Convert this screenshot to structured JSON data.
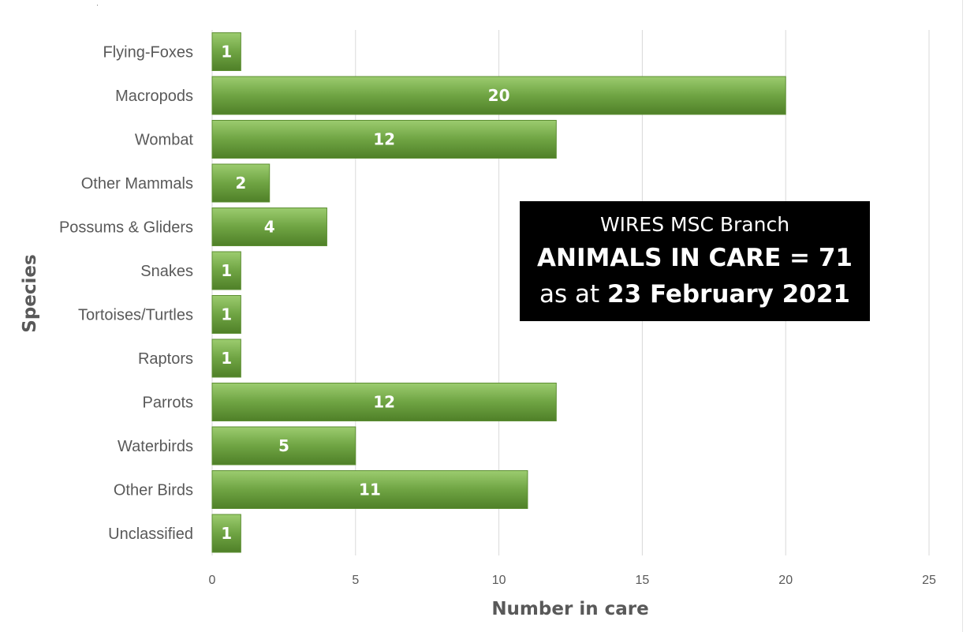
{
  "chart_data": {
    "type": "bar",
    "orientation": "horizontal",
    "categories": [
      "Flying-Foxes",
      "Macropods",
      "Wombat",
      "Other Mammals",
      "Possums & Gliders",
      "Snakes",
      "Tortoises/Turtles",
      "Raptors",
      "Parrots",
      "Waterbirds",
      "Other Birds",
      "Unclassified"
    ],
    "values": [
      1,
      20,
      12,
      2,
      4,
      1,
      1,
      1,
      12,
      5,
      11,
      1
    ],
    "xlabel": "Number in care",
    "ylabel": "Species",
    "xlim": [
      0,
      25
    ],
    "xticks": [
      0,
      5,
      10,
      15,
      20,
      25
    ],
    "grid": true,
    "data_labels": true,
    "bar_color": "#6a9e3c",
    "bar_color_light": "#9ccc6f"
  },
  "info_box": {
    "line1": "WIRES MSC Branch",
    "line2": "ANIMALS IN CARE = 71",
    "line3_prefix": "as at ",
    "line3_date": "23 February 2021"
  }
}
